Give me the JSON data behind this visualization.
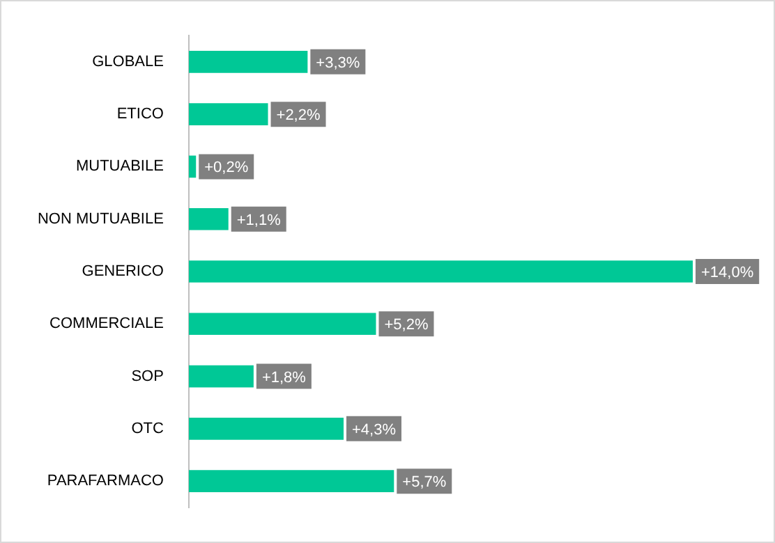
{
  "chart_data": {
    "type": "bar",
    "orientation": "horizontal",
    "categories": [
      "GLOBALE",
      "ETICO",
      "MUTUABILE",
      "NON MUTUABILE",
      "GENERICO",
      "COMMERCIALE",
      "SOP",
      "OTC",
      "PARAFARMACO"
    ],
    "values": [
      3.3,
      2.2,
      0.2,
      1.1,
      14.0,
      5.2,
      1.8,
      4.3,
      5.7
    ],
    "value_labels": [
      "+3,3%",
      "+2,2%",
      "+0,2%",
      "+1,1%",
      "+14,0%",
      "+5,2%",
      "+1,8%",
      "+4,3%",
      "+5,7%"
    ],
    "color": "#00c896",
    "legend": false
  }
}
